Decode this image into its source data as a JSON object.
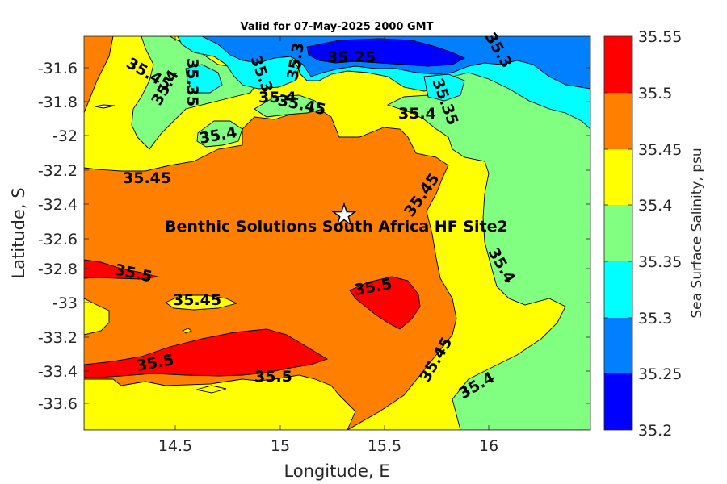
{
  "title": "Valid for 07-May-2025 2000 GMT",
  "xlabel": "Longitude, E",
  "ylabel": "Latitude, S",
  "x_ticks": [
    "14.5",
    "15",
    "15.5",
    "16"
  ],
  "y_ticks": [
    "-31.6",
    "-31.8",
    "-32",
    "-32.2",
    "-32.4",
    "-32.6",
    "-32.8",
    "-33",
    "-33.2",
    "-33.4",
    "-33.6"
  ],
  "colorbar": {
    "label": "Sea Surface Salinity, psu",
    "ticks": [
      "35.55",
      "35.5",
      "35.45",
      "35.4",
      "35.35",
      "35.3",
      "35.25",
      "35.2"
    ],
    "colors": [
      "#ff0000",
      "#ff8000",
      "#ffff00",
      "#80ff80",
      "#00ffff",
      "#0080ff",
      "#0000ff"
    ]
  },
  "site": {
    "name": "Benthic Solutions South Africa HF Site2"
  },
  "contour_labels": [
    "35.45",
    "35.4",
    "35.35",
    "35.3",
    "35.3",
    "35.25",
    "35.3",
    "35.35",
    "35.4",
    "35.4",
    "35.4",
    "35.45",
    "35.45",
    "35.45",
    "35.5",
    "35.5",
    "35.5",
    "35.45",
    "35.5",
    "35.4",
    "35.4",
    "35.45"
  ],
  "chart_data": {
    "type": "heatmap",
    "title": "Valid for 07-May-2025 2000 GMT",
    "xlabel": "Longitude, E",
    "ylabel": "Latitude, S",
    "xlim": [
      14.03,
      16.5
    ],
    "ylim": [
      -33.77,
      -31.48
    ],
    "clim": [
      35.2,
      35.55
    ],
    "levels": [
      35.2,
      35.25,
      35.3,
      35.35,
      35.4,
      35.45,
      35.5,
      35.55
    ],
    "site": {
      "lon": 15.31,
      "lat": -32.47
    }
  }
}
